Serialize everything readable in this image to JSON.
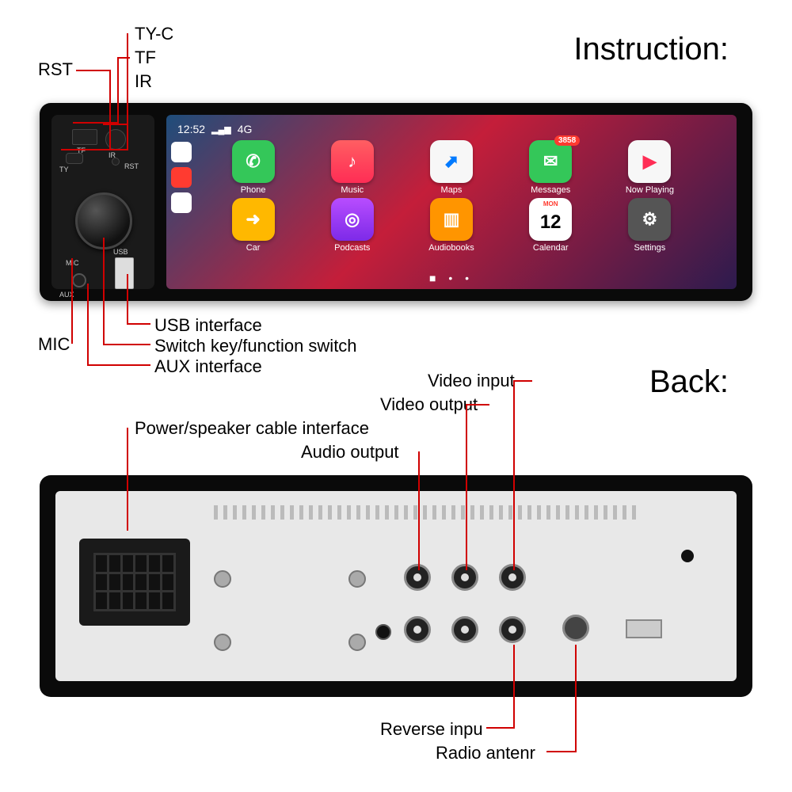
{
  "titles": {
    "instruction": "Instruction:",
    "back": "Back:"
  },
  "front_labels": {
    "tyc": "TY-C",
    "tf": "TF",
    "ir": "IR",
    "rst": "RST",
    "mic": "MIC",
    "usb": "USB interface",
    "switch": "Switch key/function switch",
    "aux": "AUX interface"
  },
  "back_labels": {
    "vin": "Video input",
    "vout": "Video output",
    "power": "Power/speaker cable interface",
    "aout": "Audio output",
    "rev": "Reverse inpu",
    "ant": "Radio antenr"
  },
  "panel_txt": {
    "tf": "TF",
    "ir": "IR",
    "ty": "TY",
    "rst": "RST",
    "mic": "MIC",
    "aux": "AUX",
    "usb": "USB"
  },
  "status": {
    "time": "12:52",
    "sig": "4G"
  },
  "apps": [
    {
      "label": "Phone",
      "bg": "#34c759",
      "sym": "✆"
    },
    {
      "label": "Music",
      "bg": "linear-gradient(180deg,#ff5e62,#ff2d55)",
      "sym": "♪"
    },
    {
      "label": "Maps",
      "bg": "#f7f7f7",
      "sym": "⬈",
      "fg": "#007aff"
    },
    {
      "label": "Messages",
      "bg": "#34c759",
      "sym": "✉",
      "badge": "3858"
    },
    {
      "label": "Now Playing",
      "bg": "#f7f7f7",
      "sym": "▶",
      "fg": "#ff2d55"
    },
    {
      "label": "Car",
      "bg": "#ffb800",
      "sym": "➜"
    },
    {
      "label": "Podcasts",
      "bg": "linear-gradient(180deg,#b84dff,#7d2ae8)",
      "sym": "◎"
    },
    {
      "label": "Audiobooks",
      "bg": "#ff9500",
      "sym": "▥"
    },
    {
      "label": "Calendar",
      "bg": "#fff",
      "sym": "12",
      "fg": "#000",
      "top": "MON"
    },
    {
      "label": "Settings",
      "bg": "#555",
      "sym": "⚙"
    }
  ],
  "side_icons": [
    "#fff",
    "#ff3b30",
    "#fff"
  ],
  "colors": {
    "callout": "#d00000"
  }
}
